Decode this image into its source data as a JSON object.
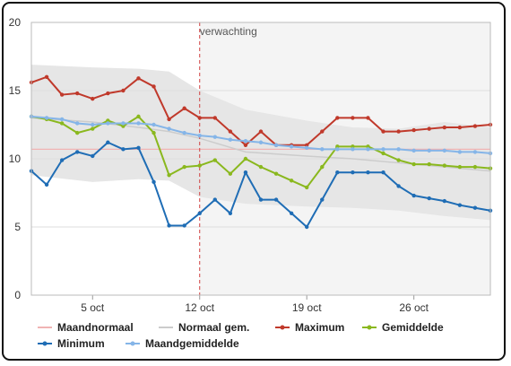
{
  "chart_data": {
    "type": "line",
    "title": "",
    "xlabel": "",
    "ylabel": "",
    "ylim": [
      0,
      20
    ],
    "y_ticks": [
      "0",
      "5",
      "10",
      "15",
      "20"
    ],
    "x_ticks": [
      {
        "x": 5,
        "label": "5 oct"
      },
      {
        "x": 12,
        "label": "12 oct"
      },
      {
        "x": 19,
        "label": "19 oct"
      },
      {
        "x": 26,
        "label": "26 oct"
      }
    ],
    "x_range": [
      1,
      31
    ],
    "forecast_start": 12,
    "forecast_label": "verwachting",
    "grid": true,
    "legend_position": "bottom",
    "legend": [
      {
        "name": "Maandnormaal",
        "color": "#f0b4b4",
        "marker": false
      },
      {
        "name": "Normaal gem.",
        "color": "#cccccc",
        "marker": false
      },
      {
        "name": "Maximum",
        "color": "#c0392b",
        "marker": true
      },
      {
        "name": "Gemiddelde",
        "color": "#8ab81e",
        "marker": true
      },
      {
        "name": "Minimum",
        "color": "#1f6db5",
        "marker": true
      },
      {
        "name": "Maandgemiddelde",
        "color": "#85b5e8",
        "marker": true
      }
    ],
    "maandnormaal": 10.7,
    "normaal_band": {
      "x": [
        1,
        5,
        8,
        10,
        12,
        15,
        19,
        22,
        25,
        28,
        31
      ],
      "upper": [
        16.9,
        16.7,
        16.6,
        16.4,
        15.0,
        13.6,
        12.8,
        12.3,
        12.2,
        12.7,
        12.3
      ],
      "lower": [
        8.8,
        8.3,
        8.5,
        8.4,
        7.2,
        6.7,
        6.5,
        6.4,
        6.2,
        5.8,
        5.5
      ]
    },
    "normaal_gem": {
      "x": [
        1,
        5,
        8,
        10,
        12,
        15,
        19,
        22,
        25,
        28,
        31
      ],
      "y": [
        13.0,
        12.7,
        12.3,
        12.0,
        11.5,
        10.5,
        10.2,
        10.0,
        9.7,
        9.4,
        9.1
      ]
    },
    "series": [
      {
        "name": "Maximum",
        "color": "#c0392b",
        "x": [
          1,
          2,
          3,
          4,
          5,
          6,
          7,
          8,
          9,
          10,
          11,
          12,
          13,
          14,
          15,
          16,
          17,
          18,
          19,
          20,
          21,
          22,
          23,
          24,
          25,
          26,
          27,
          28,
          29,
          30,
          31
        ],
        "values": [
          15.6,
          16.0,
          14.7,
          14.8,
          14.4,
          14.8,
          15.0,
          15.9,
          15.3,
          12.9,
          13.7,
          13.0,
          13.0,
          12.0,
          11.0,
          12.0,
          11.0,
          11.0,
          11.0,
          12.0,
          13.0,
          13.0,
          13.0,
          12.0,
          12.0,
          12.1,
          12.2,
          12.3,
          12.3,
          12.4,
          12.5
        ]
      },
      {
        "name": "Gemiddelde",
        "color": "#8ab81e",
        "x": [
          1,
          2,
          3,
          4,
          5,
          6,
          7,
          8,
          9,
          10,
          11,
          12,
          13,
          14,
          15,
          16,
          17,
          18,
          19,
          20,
          21,
          22,
          23,
          24,
          25,
          26,
          27,
          28,
          29,
          30,
          31
        ],
        "values": [
          13.1,
          12.9,
          12.6,
          11.9,
          12.2,
          12.8,
          12.4,
          13.1,
          11.9,
          8.8,
          9.4,
          9.5,
          9.9,
          8.9,
          10.0,
          9.4,
          8.9,
          8.4,
          7.9,
          9.4,
          10.9,
          10.9,
          10.9,
          10.4,
          9.9,
          9.6,
          9.6,
          9.5,
          9.4,
          9.4,
          9.3
        ]
      },
      {
        "name": "Minimum",
        "color": "#1f6db5",
        "x": [
          1,
          2,
          3,
          4,
          5,
          6,
          7,
          8,
          9,
          10,
          11,
          12,
          13,
          14,
          15,
          16,
          17,
          18,
          19,
          20,
          21,
          22,
          23,
          24,
          25,
          26,
          27,
          28,
          29,
          30,
          31
        ],
        "values": [
          9.1,
          8.1,
          9.9,
          10.5,
          10.2,
          11.2,
          10.7,
          10.8,
          8.3,
          5.1,
          5.1,
          6.0,
          7.0,
          6.0,
          9.0,
          7.0,
          7.0,
          6.0,
          5.0,
          7.0,
          9.0,
          9.0,
          9.0,
          9.0,
          8.0,
          7.3,
          7.1,
          6.9,
          6.6,
          6.4,
          6.2
        ]
      },
      {
        "name": "Maandgemiddelde",
        "color": "#85b5e8",
        "x": [
          1,
          2,
          3,
          4,
          5,
          6,
          7,
          8,
          9,
          10,
          11,
          12,
          13,
          14,
          15,
          16,
          17,
          18,
          19,
          20,
          21,
          22,
          23,
          24,
          25,
          26,
          27,
          28,
          29,
          30,
          31
        ],
        "values": [
          13.1,
          13.0,
          12.9,
          12.6,
          12.5,
          12.6,
          12.6,
          12.6,
          12.5,
          12.2,
          11.9,
          11.7,
          11.6,
          11.4,
          11.3,
          11.2,
          11.0,
          10.9,
          10.8,
          10.7,
          10.7,
          10.7,
          10.7,
          10.7,
          10.7,
          10.6,
          10.6,
          10.6,
          10.5,
          10.5,
          10.4
        ]
      }
    ]
  }
}
